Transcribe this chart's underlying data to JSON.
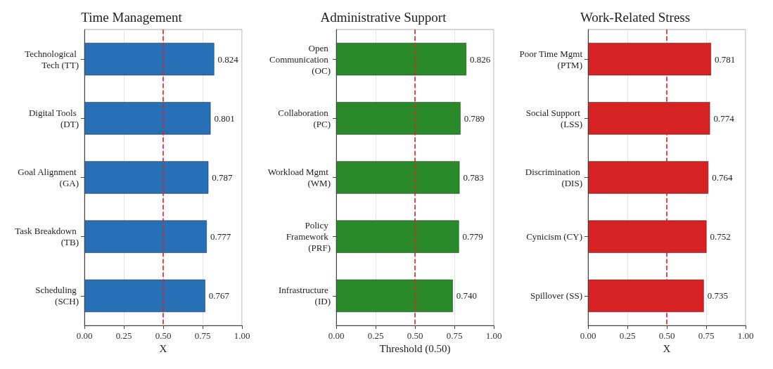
{
  "chart_data": [
    {
      "type": "bar",
      "orientation": "horizontal",
      "title": "Time Management",
      "xlabel": "X",
      "categories": [
        "Technological Tech (TT)",
        "Digital Tools (DT)",
        "Goal Alignment (GA)",
        "Task Breakdown (TB)",
        "Scheduling (SCH)"
      ],
      "values": [
        0.824,
        0.801,
        0.787,
        0.777,
        0.767
      ],
      "value_labels": [
        "0.824",
        "0.801",
        "0.787",
        "0.777",
        "0.767"
      ],
      "color": "#2770b5",
      "xlim": [
        0,
        1
      ],
      "xticks": [
        {
          "value": 0,
          "label": "0.00"
        },
        {
          "value": 0.25,
          "label": "0.25"
        },
        {
          "value": 0.5,
          "label": "0.50"
        },
        {
          "value": 0.75,
          "label": "0.75"
        },
        {
          "value": 1,
          "label": "1.00"
        }
      ],
      "grid": "x",
      "ref_lines": [
        {
          "axis": "x",
          "value": 0.5,
          "color": "#d62728",
          "line_style": "dashed"
        }
      ]
    },
    {
      "type": "bar",
      "orientation": "horizontal",
      "title": "Administrative Support",
      "xlabel": "Threshold (0.50)",
      "categories": [
        "Open Communication (OC)",
        "Collaboration (PC)",
        "Workload Mgmt (WM)",
        "Policy Framework (PRF)",
        "Infrastructure (ID)"
      ],
      "values": [
        0.826,
        0.789,
        0.783,
        0.779,
        0.74
      ],
      "value_labels": [
        "0.826",
        "0.789",
        "0.783",
        "0.779",
        "0.740"
      ],
      "color": "#2a8a2a",
      "xlim": [
        0,
        1
      ],
      "xticks": [
        {
          "value": 0,
          "label": "0.00"
        },
        {
          "value": 0.25,
          "label": "0.25"
        },
        {
          "value": 0.5,
          "label": "0.50"
        },
        {
          "value": 0.75,
          "label": "0.75"
        },
        {
          "value": 1,
          "label": "1.00"
        }
      ],
      "grid": "x",
      "ref_lines": [
        {
          "axis": "x",
          "value": 0.5,
          "color": "#d62728",
          "line_style": "dashed"
        }
      ]
    },
    {
      "type": "bar",
      "orientation": "horizontal",
      "title": "Work-Related Stress",
      "xlabel": "X",
      "categories": [
        "Poor Time Mgmt (PTM)",
        "Social Support (LSS)",
        "Discrimination (DIS)",
        "Cynicism (CY)",
        "Spillover (SS)"
      ],
      "values": [
        0.781,
        0.774,
        0.764,
        0.752,
        0.735
      ],
      "value_labels": [
        "0.781",
        "0.774",
        "0.764",
        "0.752",
        "0.735"
      ],
      "color": "#d62222",
      "xlim": [
        0,
        1
      ],
      "xticks": [
        {
          "value": 0,
          "label": "0.00"
        },
        {
          "value": 0.25,
          "label": "0.25"
        },
        {
          "value": 0.5,
          "label": "0.50"
        },
        {
          "value": 0.75,
          "label": "0.75"
        },
        {
          "value": 1,
          "label": "1.00"
        }
      ],
      "grid": "x",
      "ref_lines": [
        {
          "axis": "x",
          "value": 0.5,
          "color": "#d62728",
          "line_style": "dashed"
        }
      ]
    }
  ]
}
